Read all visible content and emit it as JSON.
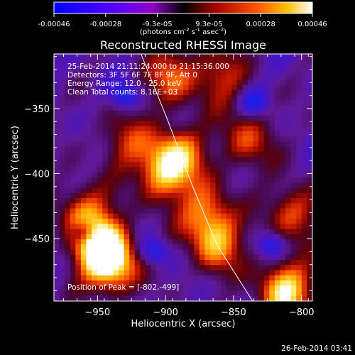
{
  "colorbar": {
    "ticks": [
      "-0.00046",
      "-0.00028",
      "-9.3e-05",
      "9.3e-05",
      "0.00028",
      "0.00046"
    ],
    "units_main": "(photons cm",
    "units_exp1": "-2",
    "units_mid": " s",
    "units_exp2": "-1",
    "units_end": " asec",
    "units_exp3": "-2",
    "units_close": ")"
  },
  "chart_data": {
    "type": "heatmap",
    "title": "Reconstructed RHESSI Image",
    "xlabel": "Heliocentric X (arcsec)",
    "ylabel": "Heliocentric Y (arcsec)",
    "xlim": [
      -982,
      -792
    ],
    "ylim": [
      -498,
      -308
    ],
    "x_ticks": [
      -950,
      -900,
      -850,
      -800
    ],
    "y_ticks": [
      -450,
      -400,
      -350
    ],
    "x_tick_labels": [
      "−950",
      "−900",
      "−850",
      "−800"
    ],
    "y_tick_labels": [
      "−450",
      "−400",
      "−350"
    ],
    "value_range": [
      -0.00046,
      0.00046
    ],
    "limb_curve": [
      [
        -918,
        -308
      ],
      [
        -898,
        -360
      ],
      [
        -880,
        -410
      ],
      [
        -862,
        -455
      ],
      [
        -836,
        -498
      ]
    ],
    "peak": [
      -802,
      -499
    ],
    "bright_features": [
      {
        "x": -948,
        "y": -455,
        "strength": 1.0
      },
      {
        "x": -940,
        "y": -470,
        "strength": 0.9
      },
      {
        "x": -960,
        "y": -430,
        "strength": 0.6
      },
      {
        "x": -902,
        "y": -400,
        "strength": 0.75
      },
      {
        "x": -890,
        "y": -385,
        "strength": 0.7
      },
      {
        "x": -870,
        "y": -430,
        "strength": 0.65
      },
      {
        "x": -862,
        "y": -455,
        "strength": 0.7
      },
      {
        "x": -812,
        "y": -490,
        "strength": 1.0
      },
      {
        "x": -805,
        "y": -430,
        "strength": 0.6
      },
      {
        "x": -895,
        "y": -325,
        "strength": 0.6
      },
      {
        "x": -860,
        "y": -325,
        "strength": 0.5
      },
      {
        "x": -930,
        "y": -375,
        "strength": 0.45
      },
      {
        "x": -840,
        "y": -375,
        "strength": 0.55
      }
    ],
    "dark_features": [
      {
        "x": -960,
        "y": -445
      },
      {
        "x": -908,
        "y": -460
      },
      {
        "x": -822,
        "y": -455
      },
      {
        "x": -835,
        "y": -345
      },
      {
        "x": -930,
        "y": -340
      }
    ]
  },
  "info_lines": {
    "line1": "25-Feb-2014 21:11:24.000 to 21:15:36.000",
    "line2": "Detectors: 3F 5F 6F 7F 8F 9F, Att 0",
    "line3": "Energy Range: 12.0 - 25.0 keV",
    "line4": "Clean     Total counts: 8.16E+03"
  },
  "peak_label": "Position of Peak = [-802,-499]",
  "timestamp": "26-Feb-2014 03:41"
}
